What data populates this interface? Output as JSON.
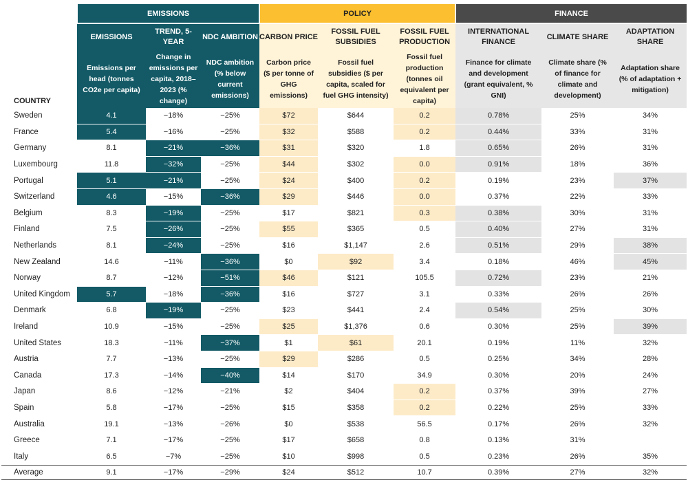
{
  "groups": {
    "emissions": "EMISSIONS",
    "policy": "POLICY",
    "finance": "FINANCE"
  },
  "columns": [
    {
      "short": "EMISSIONS",
      "long": "Emissions per head (tonnes CO2e per capita)"
    },
    {
      "short": "TREND, 5-YEAR",
      "long": "Change in emissions per capita, 2018–2023 (% change)"
    },
    {
      "short": "NDC AMBITION",
      "long": "NDC ambition (% below current emissions)"
    },
    {
      "short": "CARBON PRICE",
      "long": "Carbon price ($ per tonne of GHG emissions)"
    },
    {
      "short": "FOSSIL FUEL SUBSIDIES",
      "long": "Fossil fuel subsidies ($ per capita, scaled for fuel GHG intensity)"
    },
    {
      "short": "FOSSIL FUEL PRODUCTION",
      "long": "Fossil fuel production (tonnes oil equivalent per capita)"
    },
    {
      "short": "INTERNATIONAL FINANCE",
      "long": "Finance for climate and development (grant equivalent, % GNI)"
    },
    {
      "short": "CLIMATE SHARE",
      "long": "Climate share (% of finance for climate and development)"
    },
    {
      "short": "ADAPTATION SHARE",
      "long": "Adaptation share (% of adaptation + mitigation)"
    }
  ],
  "country_header": "COUNTRY",
  "rows": [
    {
      "country": "Sweden",
      "values": [
        "4.1",
        "−18%",
        "−25%",
        "$72",
        "$644",
        "0.2",
        "0.78%",
        "25%",
        "34%"
      ]
    },
    {
      "country": "France",
      "values": [
        "5.4",
        "−16%",
        "−25%",
        "$32",
        "$588",
        "0.2",
        "0.44%",
        "33%",
        "31%"
      ]
    },
    {
      "country": "Germany",
      "values": [
        "8.1",
        "−21%",
        "−36%",
        "$31",
        "$320",
        "1.8",
        "0.65%",
        "26%",
        "31%"
      ]
    },
    {
      "country": "Luxembourg",
      "values": [
        "11.8",
        "−32%",
        "−25%",
        "$44",
        "$302",
        "0.0",
        "0.91%",
        "18%",
        "36%"
      ]
    },
    {
      "country": "Portugal",
      "values": [
        "5.1",
        "−21%",
        "−25%",
        "$24",
        "$400",
        "0.2",
        "0.19%",
        "23%",
        "37%"
      ]
    },
    {
      "country": "Switzerland",
      "values": [
        "4.6",
        "−15%",
        "−36%",
        "$29",
        "$446",
        "0.0",
        "0.37%",
        "22%",
        "33%"
      ]
    },
    {
      "country": "Belgium",
      "values": [
        "8.3",
        "−19%",
        "−25%",
        "$17",
        "$821",
        "0.3",
        "0.38%",
        "30%",
        "31%"
      ]
    },
    {
      "country": "Finland",
      "values": [
        "7.5",
        "−26%",
        "−25%",
        "$55",
        "$365",
        "0.5",
        "0.40%",
        "27%",
        "31%"
      ]
    },
    {
      "country": "Netherlands",
      "values": [
        "8.1",
        "−24%",
        "−25%",
        "$16",
        "$1,147",
        "2.6",
        "0.51%",
        "29%",
        "38%"
      ]
    },
    {
      "country": "New Zealand",
      "values": [
        "14.6",
        "−11%",
        "−36%",
        "$0",
        "$92",
        "3.4",
        "0.18%",
        "46%",
        "45%"
      ]
    },
    {
      "country": "Norway",
      "values": [
        "8.7",
        "−12%",
        "−51%",
        "$46",
        "$121",
        "105.5",
        "0.72%",
        "23%",
        "21%"
      ]
    },
    {
      "country": "United Kingdom",
      "values": [
        "5.7",
        "−18%",
        "−36%",
        "$16",
        "$727",
        "3.1",
        "0.33%",
        "26%",
        "26%"
      ]
    },
    {
      "country": "Denmark",
      "values": [
        "6.8",
        "−19%",
        "−25%",
        "$23",
        "$441",
        "2.4",
        "0.54%",
        "25%",
        "30%"
      ]
    },
    {
      "country": "Ireland",
      "values": [
        "10.9",
        "−15%",
        "−25%",
        "$25",
        "$1,376",
        "0.6",
        "0.30%",
        "25%",
        "39%"
      ]
    },
    {
      "country": "United States",
      "values": [
        "18.3",
        "−11%",
        "−37%",
        "$1",
        "$61",
        "20.1",
        "0.19%",
        "11%",
        "32%"
      ]
    },
    {
      "country": "Austria",
      "values": [
        "7.7",
        "−13%",
        "−25%",
        "$29",
        "$286",
        "0.5",
        "0.25%",
        "34%",
        "28%"
      ]
    },
    {
      "country": "Canada",
      "values": [
        "17.3",
        "−14%",
        "−40%",
        "$14",
        "$170",
        "34.9",
        "0.30%",
        "20%",
        "24%"
      ]
    },
    {
      "country": "Japan",
      "values": [
        "8.6",
        "−12%",
        "−21%",
        "$2",
        "$404",
        "0.2",
        "0.37%",
        "39%",
        "27%"
      ]
    },
    {
      "country": "Spain",
      "values": [
        "5.8",
        "−17%",
        "−25%",
        "$15",
        "$358",
        "0.2",
        "0.22%",
        "25%",
        "33%"
      ]
    },
    {
      "country": "Australia",
      "values": [
        "19.1",
        "−13%",
        "−26%",
        "$0",
        "$538",
        "56.5",
        "0.17%",
        "26%",
        "32%"
      ]
    },
    {
      "country": "Greece",
      "values": [
        "7.1",
        "−17%",
        "−25%",
        "$17",
        "$658",
        "0.8",
        "0.13%",
        "31%",
        ""
      ]
    },
    {
      "country": "Italy",
      "values": [
        "6.5",
        "−7%",
        "−25%",
        "$10",
        "$998",
        "0.5",
        "0.23%",
        "26%",
        "35%"
      ]
    }
  ],
  "average": {
    "label": "Average",
    "values": [
      "9.1",
      "−17%",
      "−29%",
      "$24",
      "$512",
      "10.7",
      "0.39%",
      "27%",
      "32%"
    ]
  },
  "highlights": {
    "0": [
      true,
      false,
      false,
      true,
      false,
      true,
      true,
      false,
      false
    ],
    "1": [
      true,
      false,
      false,
      true,
      false,
      true,
      true,
      false,
      false
    ],
    "2": [
      false,
      true,
      true,
      true,
      false,
      false,
      true,
      false,
      false
    ],
    "3": [
      false,
      true,
      false,
      true,
      false,
      true,
      true,
      false,
      false
    ],
    "4": [
      true,
      true,
      false,
      true,
      false,
      true,
      false,
      false,
      true
    ],
    "5": [
      true,
      false,
      true,
      true,
      false,
      true,
      false,
      false,
      false
    ],
    "6": [
      false,
      true,
      false,
      false,
      false,
      true,
      true,
      false,
      false
    ],
    "7": [
      false,
      true,
      false,
      true,
      false,
      false,
      true,
      false,
      false
    ],
    "8": [
      false,
      true,
      false,
      false,
      false,
      false,
      true,
      false,
      true
    ],
    "9": [
      false,
      false,
      true,
      false,
      true,
      false,
      false,
      false,
      true
    ],
    "10": [
      false,
      false,
      true,
      true,
      false,
      false,
      true,
      false,
      false
    ],
    "11": [
      true,
      false,
      true,
      false,
      false,
      false,
      false,
      false,
      false
    ],
    "12": [
      false,
      true,
      false,
      false,
      false,
      false,
      true,
      false,
      false
    ],
    "13": [
      false,
      false,
      false,
      true,
      false,
      false,
      false,
      false,
      true
    ],
    "14": [
      false,
      false,
      true,
      false,
      true,
      false,
      false,
      false,
      false
    ],
    "15": [
      false,
      false,
      false,
      true,
      false,
      false,
      false,
      false,
      false
    ],
    "16": [
      false,
      false,
      true,
      false,
      false,
      false,
      false,
      false,
      false
    ],
    "17": [
      false,
      false,
      false,
      false,
      false,
      true,
      false,
      false,
      false
    ],
    "18": [
      false,
      false,
      false,
      false,
      false,
      true,
      false,
      false,
      false
    ],
    "19": [
      false,
      false,
      false,
      false,
      false,
      false,
      false,
      false,
      false
    ],
    "20": [
      false,
      false,
      false,
      false,
      false,
      false,
      false,
      false,
      false
    ],
    "21": [
      false,
      false,
      false,
      false,
      false,
      false,
      false,
      false,
      false
    ]
  },
  "colors": {
    "emissions": "#135a66",
    "policy": "#fbbf2f",
    "policy_light": "#fdebc8",
    "finance": "#4a4a4a",
    "finance_light": "#e3e3e3"
  }
}
